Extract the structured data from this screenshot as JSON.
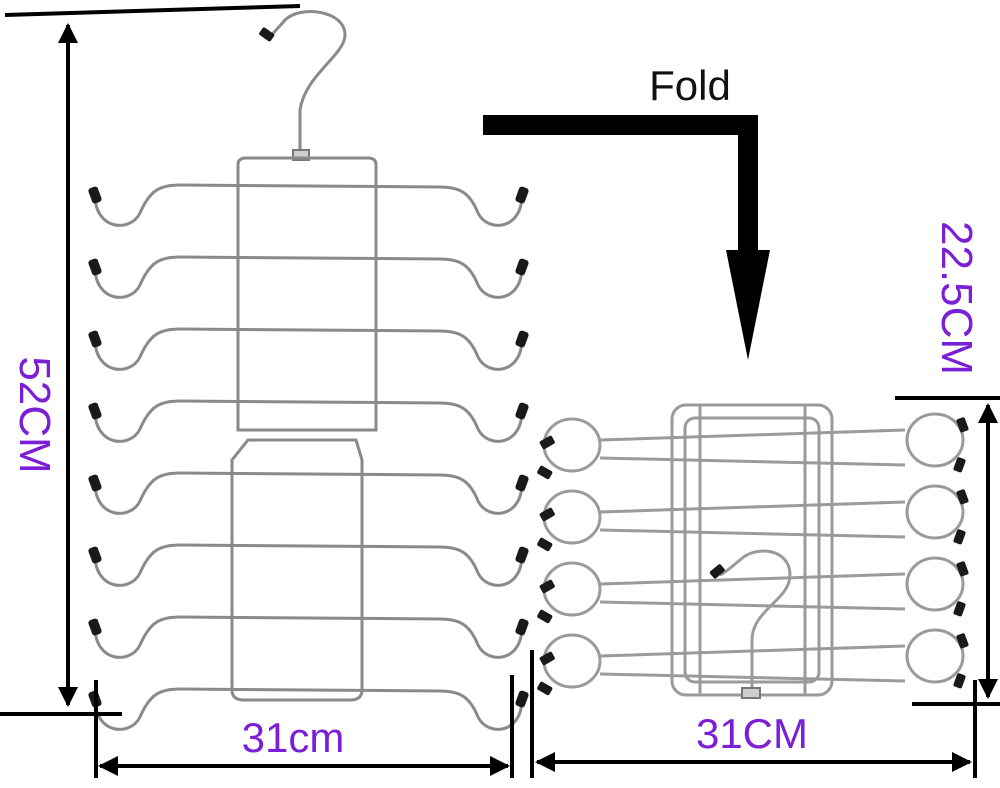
{
  "labels": {
    "fold": "Fold",
    "height_unfolded": "52CM",
    "width_unfolded": "31cm",
    "height_folded": "22.5CM",
    "width_folded": "31CM"
  },
  "colors": {
    "dimension_text": "#7a1fd6",
    "fold_text": "#111111",
    "lines": "#000000",
    "wire": "#8a8a8a",
    "tip": "#1a1a1a"
  }
}
